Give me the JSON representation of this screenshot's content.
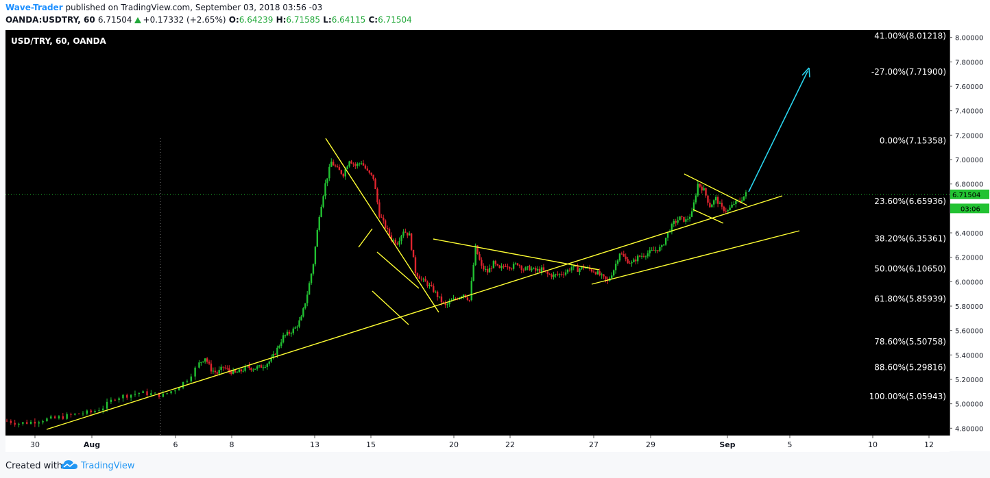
{
  "header": {
    "author": "Wave-Trader",
    "published": "published on TradingView.com, September 03, 2018 03:56 -03",
    "symbol": "OANDA:USDTRY, 60",
    "last": "6.71504",
    "change": "+0.17332 (+2.65%)",
    "o_label": "O:",
    "o_value": "6.64239",
    "h_label": "H:",
    "h_value": "6.71585",
    "l_label": "L:",
    "l_value": "6.64115",
    "c_label": "C:",
    "c_value": "6.71504"
  },
  "footer": {
    "created": "Created with",
    "brand": "TradingView",
    "logo_icon": "tradingview-cloud-icon"
  },
  "colors": {
    "up_candle": "#22c232",
    "down_candle": "#e0242e",
    "trendline": "#ffff33",
    "arrow": "#29d4ee",
    "price_line": "#22c232",
    "background": "#000000"
  },
  "chart_data": {
    "type": "candlestick",
    "title": "USD/TRY, 60, OANDA",
    "y_axis": {
      "min": 4.74,
      "max": 8.06,
      "ticks": [
        "4.80000",
        "5.00000",
        "5.20000",
        "5.40000",
        "5.60000",
        "5.80000",
        "6.00000",
        "6.20000",
        "6.40000",
        "6.60000",
        "6.80000",
        "7.00000",
        "7.20000",
        "7.40000",
        "7.60000",
        "7.80000",
        "8.00000"
      ],
      "current_price": "6.71504",
      "current_price_value": 6.71504,
      "countdown": "03:06",
      "countdown_value": 6.6
    },
    "x_axis": {
      "labels": [
        "30",
        "Aug",
        "6",
        "8",
        "13",
        "15",
        "20",
        "22",
        "27",
        "29",
        "Sep",
        "5",
        "10",
        "12"
      ]
    },
    "fib_levels": [
      {
        "label": "41.00%(8.01218)",
        "value": 8.01218
      },
      {
        "label": "-27.00%(7.71900)",
        "value": 7.719
      },
      {
        "label": "0.00%(7.15358)",
        "value": 7.15358
      },
      {
        "label": "23.60%(6.65936)",
        "value": 6.65936
      },
      {
        "label": "38.20%(6.35361)",
        "value": 6.35361
      },
      {
        "label": "50.00%(6.10650)",
        "value": 6.1065
      },
      {
        "label": "61.80%(5.85939)",
        "value": 5.85939
      },
      {
        "label": "78.60%(5.50758)",
        "value": 5.50758
      },
      {
        "label": "88.60%(5.29816)",
        "value": 5.29816
      },
      {
        "label": "100.00%(5.05943)",
        "value": 5.05943
      }
    ],
    "price_path": [
      [
        0,
        4.86
      ],
      [
        2,
        4.84
      ],
      [
        4,
        4.85
      ],
      [
        6,
        4.87
      ],
      [
        8,
        4.88
      ],
      [
        10,
        4.9
      ],
      [
        12,
        4.92
      ],
      [
        14,
        4.93
      ],
      [
        16,
        4.97
      ],
      [
        18,
        5.05
      ],
      [
        20,
        5.07
      ],
      [
        22,
        5.09
      ],
      [
        24,
        5.08
      ],
      [
        26,
        5.07
      ],
      [
        28,
        5.12
      ],
      [
        30,
        5.2
      ],
      [
        32,
        5.33
      ],
      [
        33,
        5.38
      ],
      [
        34,
        5.28
      ],
      [
        35,
        5.25
      ],
      [
        36,
        5.3
      ],
      [
        37,
        5.27
      ],
      [
        38,
        5.25
      ],
      [
        39,
        5.27
      ],
      [
        40,
        5.3
      ],
      [
        41,
        5.29
      ],
      [
        42,
        5.3
      ],
      [
        43,
        5.32
      ],
      [
        44,
        5.36
      ],
      [
        45,
        5.45
      ],
      [
        46,
        5.55
      ],
      [
        47,
        5.58
      ],
      [
        48,
        5.62
      ],
      [
        49,
        5.7
      ],
      [
        50,
        5.9
      ],
      [
        51,
        6.15
      ],
      [
        52,
        6.55
      ],
      [
        53,
        6.8
      ],
      [
        54,
        6.98
      ],
      [
        55,
        6.92
      ],
      [
        56,
        6.88
      ],
      [
        57,
        7.0
      ],
      [
        58,
        6.95
      ],
      [
        59,
        6.98
      ],
      [
        60,
        6.9
      ],
      [
        61,
        6.85
      ],
      [
        62,
        6.55
      ],
      [
        63,
        6.45
      ],
      [
        64,
        6.35
      ],
      [
        65,
        6.32
      ],
      [
        66,
        6.42
      ],
      [
        67,
        6.38
      ],
      [
        68,
        6.08
      ],
      [
        69,
        6.02
      ],
      [
        70,
        5.98
      ],
      [
        71,
        5.93
      ],
      [
        72,
        5.86
      ],
      [
        73,
        5.8
      ],
      [
        74,
        5.84
      ],
      [
        75,
        5.87
      ],
      [
        76,
        5.9
      ],
      [
        77,
        5.85
      ],
      [
        78,
        6.28
      ],
      [
        79,
        6.12
      ],
      [
        80,
        6.08
      ],
      [
        81,
        6.15
      ],
      [
        82,
        6.1
      ],
      [
        83,
        6.14
      ],
      [
        84,
        6.12
      ],
      [
        85,
        6.15
      ],
      [
        86,
        6.1
      ],
      [
        87,
        6.11
      ],
      [
        88,
        6.09
      ],
      [
        89,
        6.1
      ],
      [
        90,
        6.06
      ],
      [
        91,
        6.05
      ],
      [
        92,
        6.06
      ],
      [
        93,
        6.08
      ],
      [
        94,
        6.12
      ],
      [
        95,
        6.1
      ],
      [
        96,
        6.12
      ],
      [
        97,
        6.1
      ],
      [
        98,
        6.08
      ],
      [
        99,
        6.04
      ],
      [
        100,
        6.0
      ],
      [
        101,
        6.1
      ],
      [
        102,
        6.24
      ],
      [
        103,
        6.18
      ],
      [
        104,
        6.15
      ],
      [
        105,
        6.2
      ],
      [
        106,
        6.22
      ],
      [
        107,
        6.24
      ],
      [
        108,
        6.26
      ],
      [
        109,
        6.28
      ],
      [
        110,
        6.4
      ],
      [
        111,
        6.48
      ],
      [
        112,
        6.52
      ],
      [
        113,
        6.5
      ],
      [
        114,
        6.56
      ],
      [
        115,
        6.8
      ],
      [
        116,
        6.75
      ],
      [
        117,
        6.62
      ],
      [
        118,
        6.68
      ],
      [
        119,
        6.6
      ],
      [
        120,
        6.58
      ],
      [
        121,
        6.64
      ],
      [
        122,
        6.66
      ],
      [
        123,
        6.72
      ]
    ]
  }
}
